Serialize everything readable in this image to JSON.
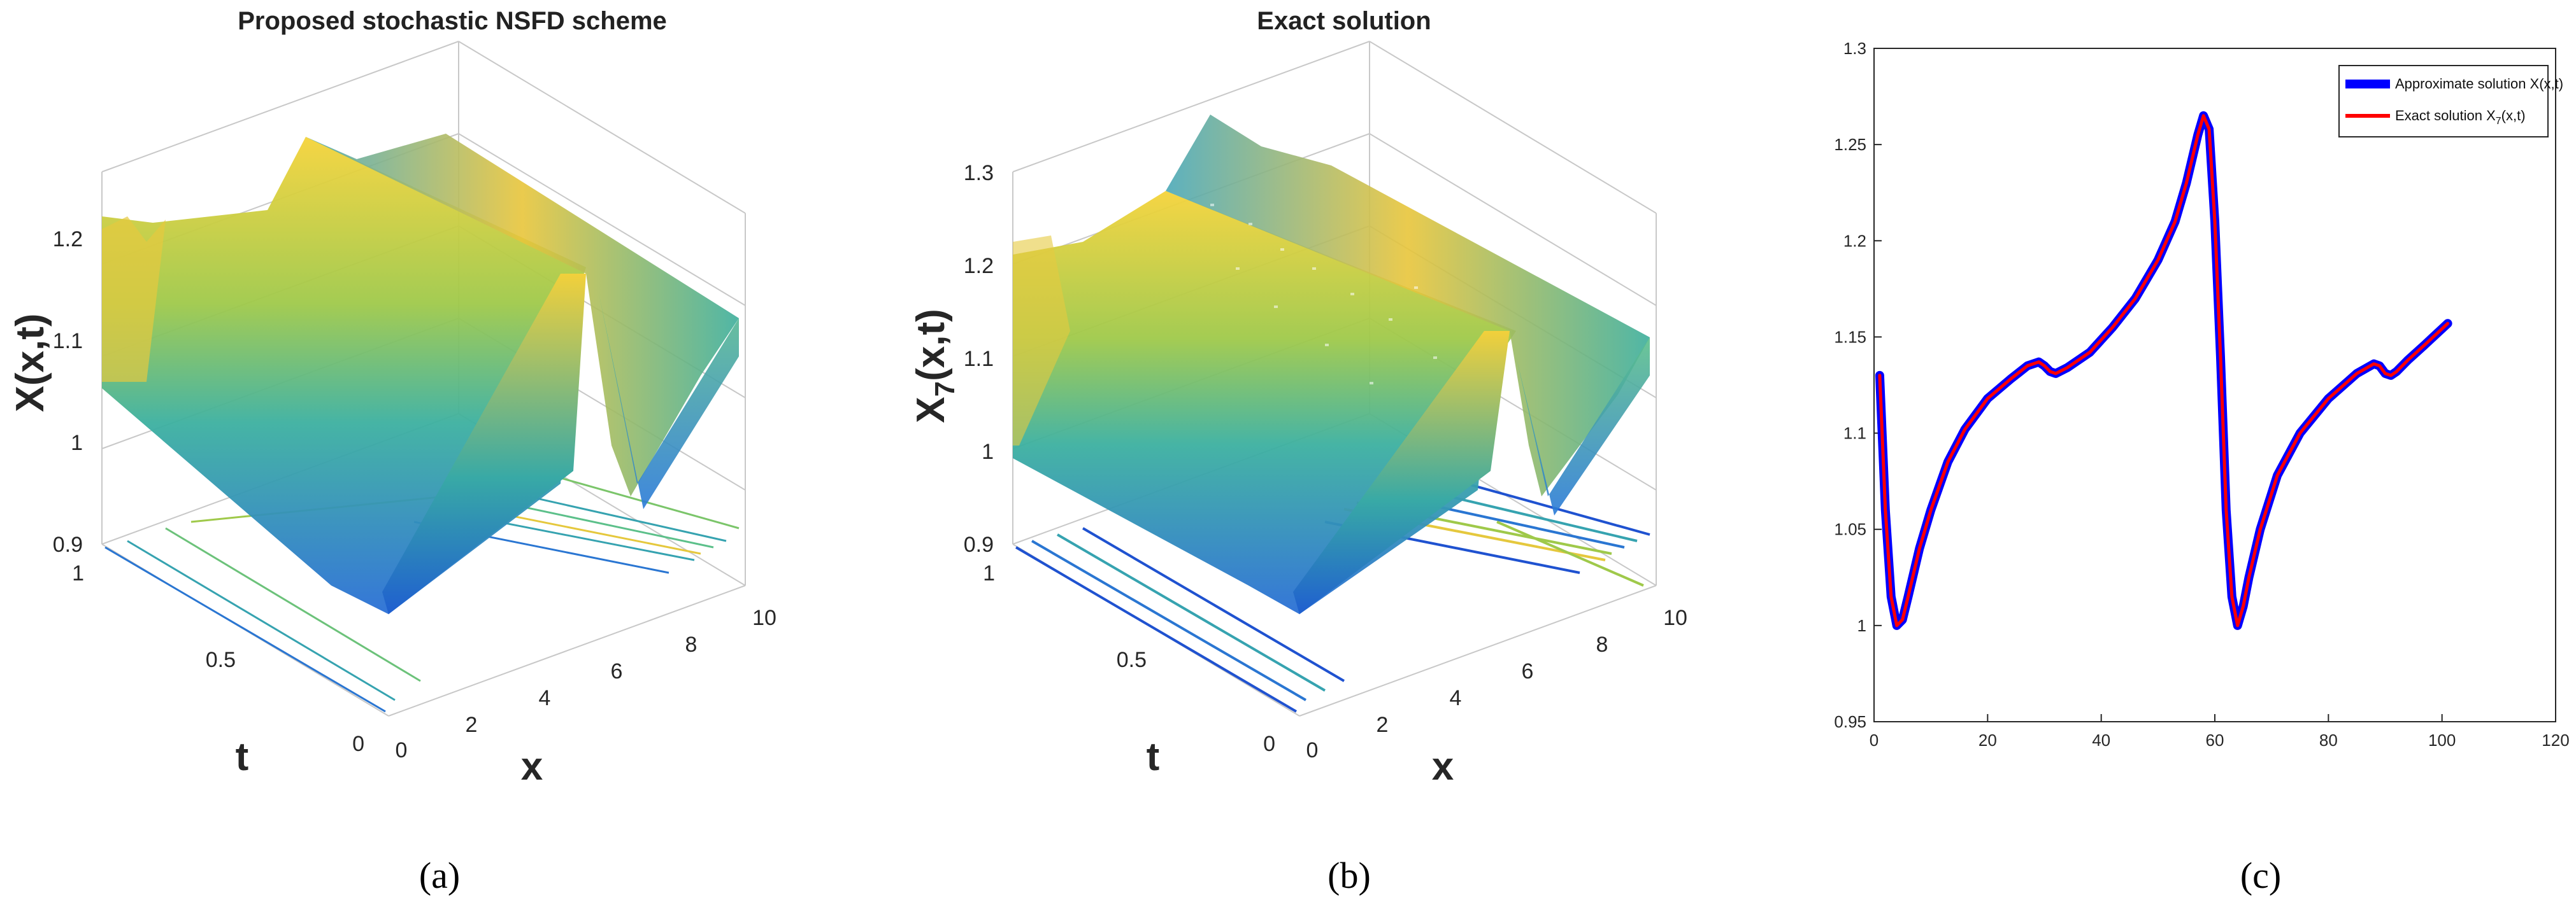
{
  "chart_data": [
    {
      "type": "surface3d",
      "panel_caption": "(a)",
      "title": "Proposed stochastic NSFD scheme",
      "zlabel": "X(x,t)",
      "xlabel": "x",
      "ylabel": "t",
      "x_ticks": [
        "0",
        "2",
        "4",
        "6",
        "8",
        "10"
      ],
      "t_ticks": [
        "0",
        "0.5",
        "1"
      ],
      "z_ticks": [
        "0.9",
        "1",
        "1.1",
        "1.2"
      ],
      "xlim": [
        0,
        10
      ],
      "tlim": [
        0,
        1
      ],
      "zlim": [
        0.9,
        1.27
      ]
    },
    {
      "type": "surface3d",
      "panel_caption": "(b)",
      "title": "Exact solution",
      "zlabel": "X",
      "zlabel_sub": "7",
      "zlabel_tail": "(x,t)",
      "xlabel": "x",
      "ylabel": "t",
      "x_ticks": [
        "0",
        "2",
        "4",
        "6",
        "8",
        "10"
      ],
      "t_ticks": [
        "0",
        "0.5",
        "1"
      ],
      "z_ticks": [
        "0.9",
        "1",
        "1.1",
        "1.2",
        "1.3"
      ],
      "xlim": [
        0,
        10
      ],
      "tlim": [
        0,
        1
      ],
      "zlim": [
        0.9,
        1.32
      ]
    },
    {
      "type": "line",
      "panel_caption": "(c)",
      "title": "",
      "xlabel": "",
      "ylabel": "",
      "xlim": [
        0,
        120
      ],
      "ylim": [
        0.95,
        1.3
      ],
      "x_ticks": [
        "0",
        "20",
        "40",
        "60",
        "80",
        "100",
        "120"
      ],
      "y_ticks": [
        "0.95",
        "1",
        "1.05",
        "1.1",
        "1.15",
        "1.2",
        "1.25",
        "1.3"
      ],
      "legend_position": "top-right",
      "series": [
        {
          "name": "Approximate solution X(x,t)",
          "color": "#0000ff",
          "x": [
            1,
            2,
            3,
            4,
            5,
            6,
            8,
            10,
            13,
            16,
            20,
            24,
            27,
            29,
            30,
            31,
            32,
            34,
            38,
            42,
            46,
            50,
            53,
            55,
            57,
            58,
            59,
            60,
            61,
            62,
            63,
            64,
            65,
            66,
            68,
            71,
            75,
            80,
            85,
            88,
            89,
            90,
            91,
            92,
            94,
            97,
            101
          ],
          "y": [
            1.13,
            1.06,
            1.015,
            1.0,
            1.003,
            1.015,
            1.04,
            1.06,
            1.085,
            1.102,
            1.118,
            1.128,
            1.135,
            1.137,
            1.135,
            1.132,
            1.131,
            1.134,
            1.142,
            1.155,
            1.17,
            1.19,
            1.21,
            1.23,
            1.255,
            1.265,
            1.258,
            1.21,
            1.14,
            1.06,
            1.015,
            1.0,
            1.01,
            1.025,
            1.05,
            1.078,
            1.1,
            1.118,
            1.131,
            1.136,
            1.135,
            1.131,
            1.13,
            1.132,
            1.138,
            1.146,
            1.157
          ]
        },
        {
          "name": "Exact solution X",
          "name_sub": "7",
          "name_tail": "(x,t)",
          "color": "#ff0000",
          "x": [
            1,
            2,
            3,
            4,
            5,
            6,
            8,
            10,
            13,
            16,
            20,
            24,
            27,
            29,
            30,
            31,
            32,
            34,
            38,
            42,
            46,
            50,
            53,
            55,
            57,
            58,
            59,
            60,
            61,
            62,
            63,
            64,
            65,
            66,
            68,
            71,
            75,
            80,
            85,
            88,
            89,
            90,
            91,
            92,
            94,
            97,
            101
          ],
          "y": [
            1.13,
            1.06,
            1.015,
            1.0,
            1.003,
            1.015,
            1.04,
            1.06,
            1.085,
            1.102,
            1.118,
            1.128,
            1.135,
            1.137,
            1.135,
            1.132,
            1.131,
            1.134,
            1.142,
            1.155,
            1.17,
            1.19,
            1.21,
            1.23,
            1.255,
            1.265,
            1.258,
            1.21,
            1.14,
            1.06,
            1.015,
            1.0,
            1.01,
            1.025,
            1.05,
            1.078,
            1.1,
            1.118,
            1.131,
            1.136,
            1.135,
            1.131,
            1.13,
            1.132,
            1.138,
            1.146,
            1.157
          ]
        }
      ]
    }
  ]
}
